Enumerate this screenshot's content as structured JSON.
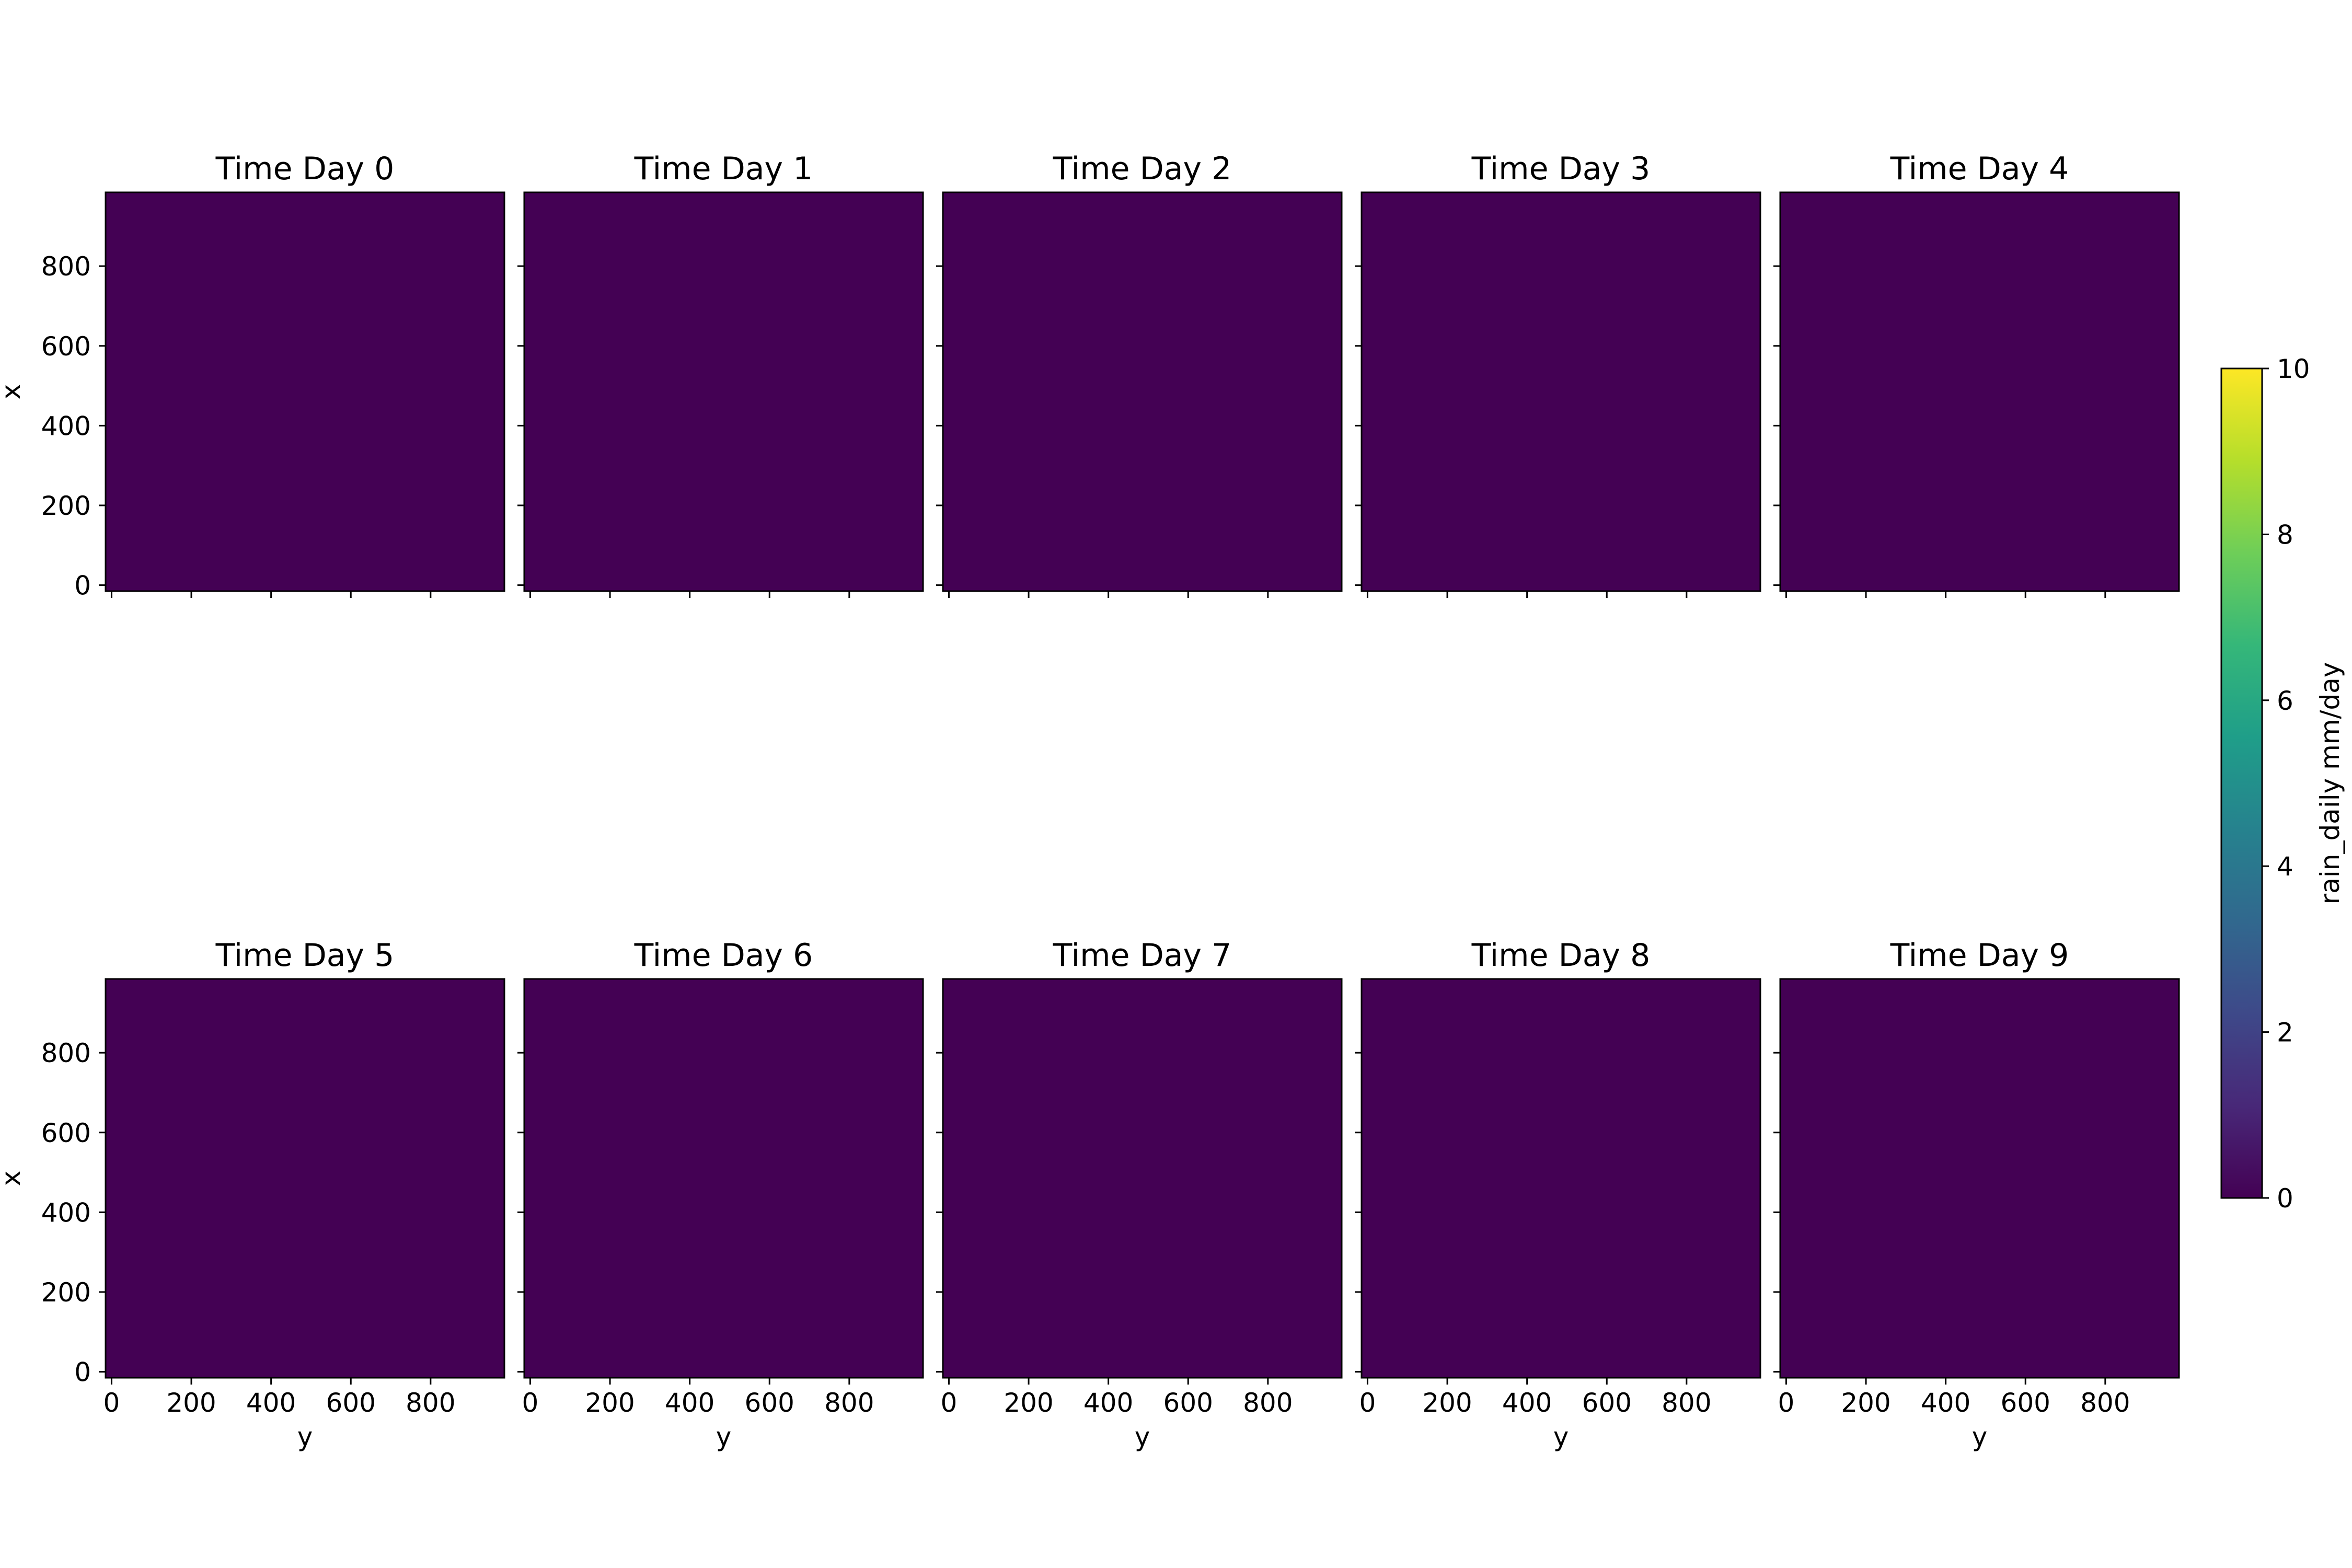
{
  "chart_data": {
    "type": "heatmap",
    "colormap": "viridis",
    "x_axis_label": "y",
    "y_axis_label": "x",
    "x_ticks": [
      0,
      200,
      400,
      600,
      800
    ],
    "y_ticks": [
      0,
      200,
      400,
      600,
      800
    ],
    "xlim": [
      -15,
      985
    ],
    "ylim": [
      -15,
      985
    ],
    "cell_value": 0,
    "panels": [
      {
        "title": "Time Day 0",
        "value": 0
      },
      {
        "title": "Time Day 1",
        "value": 0
      },
      {
        "title": "Time Day 2",
        "value": 0
      },
      {
        "title": "Time Day 3",
        "value": 0
      },
      {
        "title": "Time Day 4",
        "value": 0
      },
      {
        "title": "Time Day 5",
        "value": 0
      },
      {
        "title": "Time Day 6",
        "value": 0
      },
      {
        "title": "Time Day 7",
        "value": 0
      },
      {
        "title": "Time Day 8",
        "value": 0
      },
      {
        "title": "Time Day 9",
        "value": 0
      }
    ],
    "colorbar": {
      "label": "rain_daily mm/day",
      "range": [
        0,
        10
      ],
      "ticks": [
        0,
        2,
        4,
        6,
        8,
        10
      ],
      "colors": [
        "#440154",
        "#482878",
        "#3e4989",
        "#31688e",
        "#26828e",
        "#1f9e89",
        "#35b779",
        "#6ece58",
        "#b5de2b",
        "#fde725"
      ]
    },
    "grid": false
  }
}
